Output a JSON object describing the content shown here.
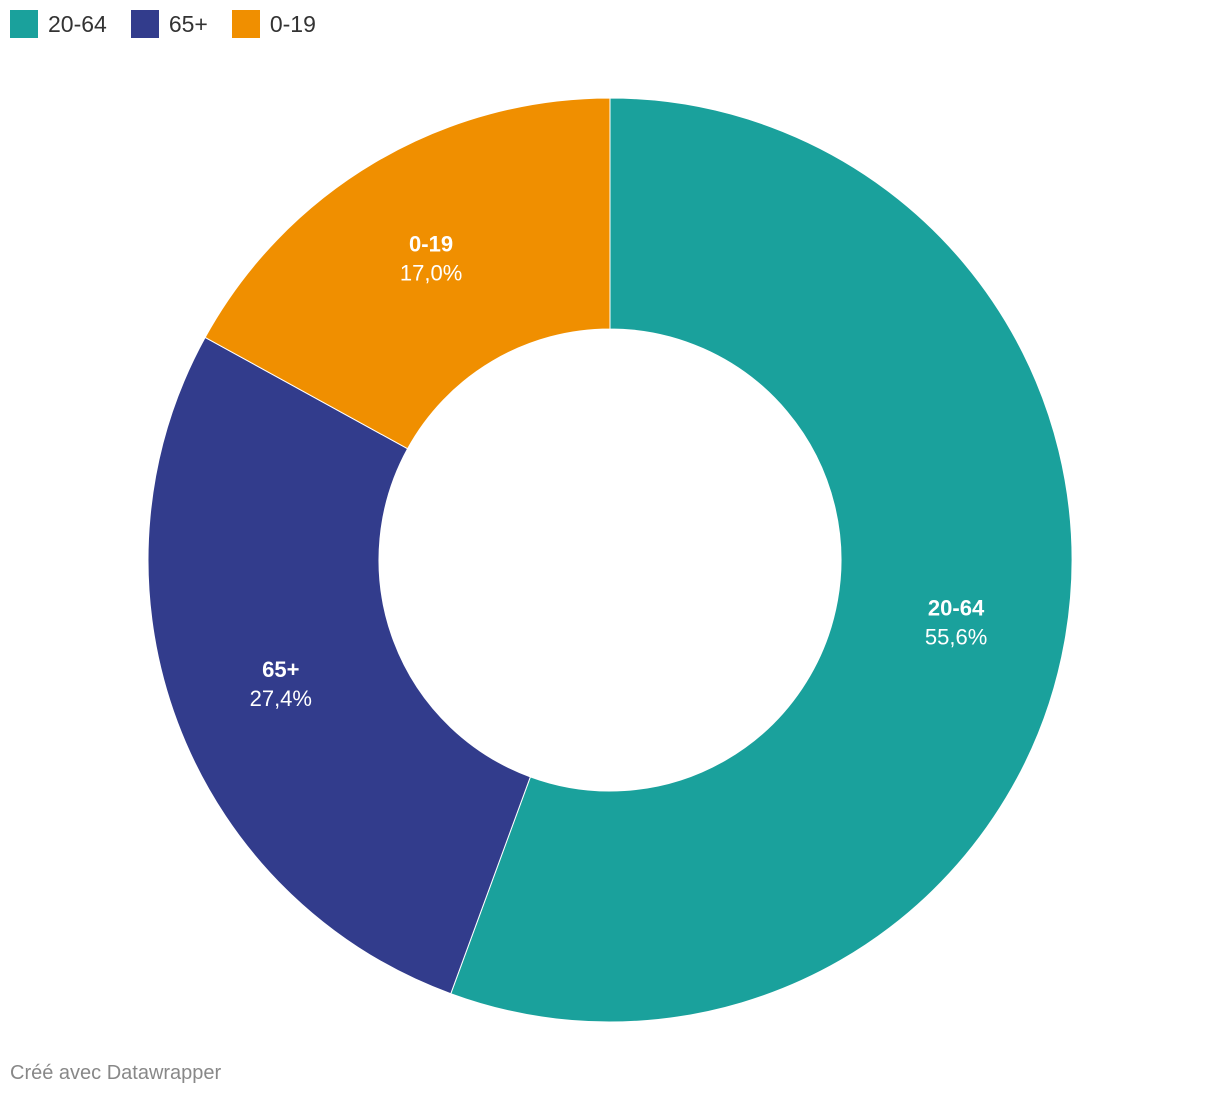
{
  "chart_data": {
    "type": "pie",
    "variant": "donut",
    "series": [
      {
        "name": "20-64",
        "value": 55.6,
        "label": "55,6%",
        "color": "#1aa19c"
      },
      {
        "name": "65+",
        "value": 27.4,
        "label": "27,4%",
        "color": "#323c8c"
      },
      {
        "name": "0-19",
        "value": 17.0,
        "label": "17,0%",
        "color": "#f08f00"
      }
    ],
    "legend": {
      "position": "top-left",
      "items": [
        {
          "label": "20-64",
          "color": "#1aa19c"
        },
        {
          "label": "65+",
          "color": "#323c8c"
        },
        {
          "label": "0-19",
          "color": "#f08f00"
        }
      ]
    }
  },
  "footer": {
    "credit": "Créé avec Datawrapper"
  }
}
